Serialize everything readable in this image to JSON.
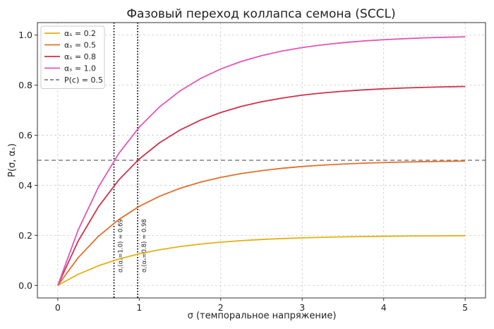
{
  "chart_data": {
    "type": "line",
    "title": "Фазовый переход коллапса семона (SCCL)",
    "xlabel": "σ (темпоральное напряжение)",
    "ylabel": "P(σ, αₛ)",
    "xlim": [
      -0.25,
      5.25
    ],
    "ylim": [
      -0.05,
      1.05
    ],
    "xticks": [
      0,
      1,
      2,
      3,
      4,
      5
    ],
    "yticks": [
      0.0,
      0.2,
      0.4,
      0.6,
      0.8,
      1.0
    ],
    "xtick_labels": [
      "0",
      "1",
      "2",
      "3",
      "4",
      "5"
    ],
    "ytick_labels": [
      "0.0",
      "0.2",
      "0.4",
      "0.6",
      "0.8",
      "1.0"
    ],
    "grid": true,
    "legend_position": "top-left",
    "x": [
      0,
      0.25,
      0.5,
      0.75,
      1.0,
      1.25,
      1.5,
      1.75,
      2.0,
      2.25,
      2.5,
      2.75,
      3.0,
      3.25,
      3.5,
      3.75,
      4.0,
      4.25,
      4.5,
      4.75,
      5.0
    ],
    "series": [
      {
        "name": "αₛ = 0.2",
        "color": "#e6b012",
        "values": [
          0.0,
          0.0442,
          0.0786,
          0.1054,
          0.1263,
          0.1425,
          0.1552,
          0.165,
          0.1727,
          0.1788,
          0.1835,
          0.1871,
          0.19,
          0.1922,
          0.1939,
          0.1953,
          0.1963,
          0.1971,
          0.1978,
          0.1983,
          0.1987
        ]
      },
      {
        "name": "αₛ = 0.5",
        "color": "#e0702c",
        "values": [
          0.0,
          0.1106,
          0.1967,
          0.2636,
          0.3158,
          0.3564,
          0.388,
          0.4126,
          0.4317,
          0.4469,
          0.4585,
          0.4677,
          0.4751,
          0.4806,
          0.4849,
          0.4883,
          0.4909,
          0.4929,
          0.4945,
          0.4958,
          0.4968
        ]
      },
      {
        "name": "αₛ = 0.8",
        "color": "#cf3149",
        "values": [
          0.0,
          0.1769,
          0.3147,
          0.4218,
          0.5052,
          0.5702,
          0.6208,
          0.6602,
          0.6908,
          0.7151,
          0.7336,
          0.7483,
          0.7601,
          0.769,
          0.7758,
          0.7812,
          0.7854,
          0.7887,
          0.7912,
          0.7933,
          0.7948
        ]
      },
      {
        "name": "αₛ = 1.0",
        "color": "#e056b8",
        "values": [
          0.0,
          0.2212,
          0.3935,
          0.5276,
          0.6321,
          0.7135,
          0.7769,
          0.8262,
          0.8647,
          0.8946,
          0.9179,
          0.9361,
          0.9502,
          0.9612,
          0.9698,
          0.9765,
          0.9817,
          0.9857,
          0.9889,
          0.9913,
          0.9933
        ]
      }
    ],
    "reference_lines": [
      {
        "orientation": "horizontal",
        "value": 0.5,
        "style": "dashed",
        "color": "#808080",
        "label": "P(c) = 0.5"
      },
      {
        "orientation": "vertical",
        "value": 0.69,
        "style": "dotted",
        "color": "#000000",
        "annotation": "σ꜀(αₛ=1.0) ≈ 0.69"
      },
      {
        "orientation": "vertical",
        "value": 0.98,
        "style": "dotted",
        "color": "#000000",
        "annotation": "σ꜀(αₛ=0.8) ≈ 0.98"
      }
    ]
  }
}
